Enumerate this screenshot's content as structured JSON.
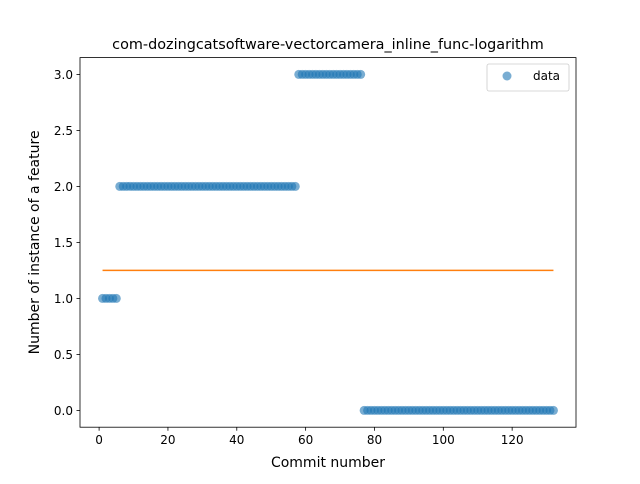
{
  "chart_data": {
    "type": "scatter",
    "title": "com-dozingcatsoftware-vectorcamera_inline_func-logarithm",
    "xlabel": "Commit number",
    "ylabel": "Number of instance of a feature",
    "xlim": [
      -5.55,
      138.55
    ],
    "ylim": [
      -0.15,
      3.15
    ],
    "x_ticks": [
      0,
      20,
      40,
      60,
      80,
      100,
      120
    ],
    "x_tick_labels": [
      "0",
      "20",
      "40",
      "60",
      "80",
      "100",
      "120"
    ],
    "y_ticks": [
      0.0,
      0.5,
      1.0,
      1.5,
      2.0,
      2.5,
      3.0
    ],
    "y_tick_labels": [
      "0.0",
      "0.5",
      "1.0",
      "1.5",
      "2.0",
      "2.5",
      "3.0"
    ],
    "grid": false,
    "legend_position": "top-right",
    "series": [
      {
        "name": "data",
        "kind": "scatter",
        "color": "#1f77b4",
        "segments": [
          {
            "x_start": 1,
            "x_end": 5,
            "y": 1
          },
          {
            "x_start": 6,
            "x_end": 57,
            "y": 2
          },
          {
            "x_start": 58,
            "x_end": 76,
            "y": 3
          },
          {
            "x_start": 77,
            "x_end": 132,
            "y": 0
          }
        ]
      },
      {
        "kind": "line",
        "color": "#ff7f0e",
        "x": [
          1,
          132
        ],
        "y": [
          1.25,
          1.25
        ]
      }
    ]
  }
}
